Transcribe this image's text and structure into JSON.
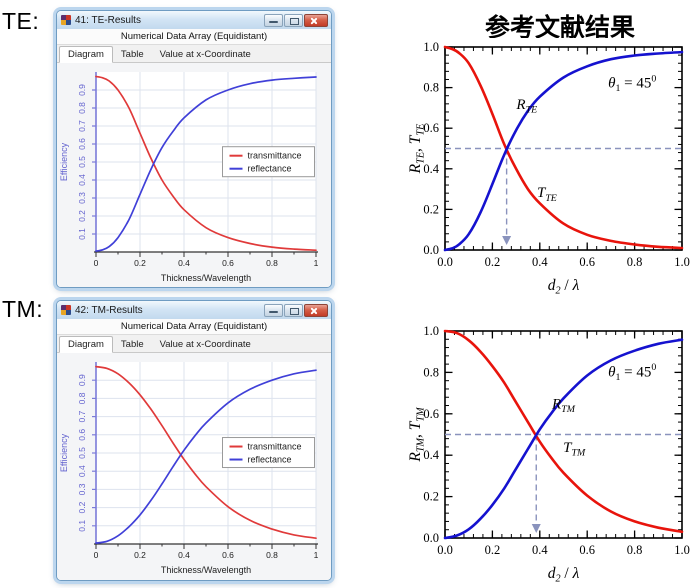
{
  "page": {
    "te_label": "TE:",
    "tm_label": "TM:",
    "reference_title": "参考文献结果"
  },
  "windows": [
    {
      "title": "41: TE-Results",
      "subtitle": "Numerical Data Array (Equidistant)",
      "tabs": [
        "Diagram",
        "Table",
        "Value at x-Coordinate"
      ]
    },
    {
      "title": "42: TM-Results",
      "subtitle": "Numerical Data Array (Equidistant)",
      "tabs": [
        "Diagram",
        "Table",
        "Value at x-Coordinate"
      ]
    }
  ],
  "chart_data": [
    {
      "id": "te-window",
      "type": "line",
      "style": "window",
      "title": "",
      "xlabel": "Thickness/Wavelength",
      "ylabel": "Efficiency",
      "xlim": [
        0,
        1
      ],
      "ylim": [
        0,
        1
      ],
      "grid": true,
      "xticks": [
        {
          "v": 0,
          "l": "0"
        },
        {
          "v": 0.2,
          "l": "0.2"
        },
        {
          "v": 0.4,
          "l": "0.4"
        },
        {
          "v": 0.6,
          "l": "0.6"
        },
        {
          "v": 0.8,
          "l": "0.8"
        },
        {
          "v": 1,
          "l": "1"
        }
      ],
      "yticks": [
        {
          "v": 0.1,
          "l": "0.1"
        },
        {
          "v": 0.2,
          "l": "0.2"
        },
        {
          "v": 0.3,
          "l": "0.3"
        },
        {
          "v": 0.4,
          "l": "0.4"
        },
        {
          "v": 0.5,
          "l": "0.5"
        },
        {
          "v": 0.6,
          "l": "0.6"
        },
        {
          "v": 0.7,
          "l": "0.7"
        },
        {
          "v": 0.8,
          "l": "0.8"
        },
        {
          "v": 0.9,
          "l": "0.9"
        }
      ],
      "legend": {
        "x": 0.575,
        "y": 0.585,
        "entries": [
          {
            "label": "transmittance",
            "color": "#e03a3a"
          },
          {
            "label": "reflectance",
            "color": "#4040d8"
          }
        ]
      },
      "series": [
        {
          "name": "transmittance",
          "color": "#e03a3a",
          "x": [
            0,
            0.03,
            0.06,
            0.1,
            0.15,
            0.2,
            0.25,
            0.3,
            0.35,
            0.4,
            0.5,
            0.6,
            0.7,
            0.8,
            0.9,
            1.0
          ],
          "y": [
            0.975,
            0.968,
            0.95,
            0.9,
            0.8,
            0.66,
            0.52,
            0.4,
            0.31,
            0.235,
            0.135,
            0.08,
            0.047,
            0.027,
            0.016,
            0.01
          ]
        },
        {
          "name": "reflectance",
          "color": "#4040d8",
          "x": [
            0,
            0.03,
            0.06,
            0.1,
            0.15,
            0.2,
            0.25,
            0.3,
            0.35,
            0.4,
            0.5,
            0.6,
            0.7,
            0.8,
            0.9,
            1.0
          ],
          "y": [
            0.005,
            0.012,
            0.03,
            0.08,
            0.18,
            0.32,
            0.46,
            0.58,
            0.67,
            0.745,
            0.845,
            0.9,
            0.935,
            0.955,
            0.965,
            0.972
          ]
        }
      ]
    },
    {
      "id": "tm-window",
      "type": "line",
      "style": "window",
      "title": "",
      "xlabel": "Thickness/Wavelength",
      "ylabel": "Efficiency",
      "xlim": [
        0,
        1
      ],
      "ylim": [
        0,
        1
      ],
      "grid": true,
      "xticks": [
        {
          "v": 0,
          "l": "0"
        },
        {
          "v": 0.2,
          "l": "0.2"
        },
        {
          "v": 0.4,
          "l": "0.4"
        },
        {
          "v": 0.6,
          "l": "0.6"
        },
        {
          "v": 0.8,
          "l": "0.8"
        },
        {
          "v": 1,
          "l": "1"
        }
      ],
      "yticks": [
        {
          "v": 0.1,
          "l": "0.1"
        },
        {
          "v": 0.2,
          "l": "0.2"
        },
        {
          "v": 0.3,
          "l": "0.3"
        },
        {
          "v": 0.4,
          "l": "0.4"
        },
        {
          "v": 0.5,
          "l": "0.5"
        },
        {
          "v": 0.6,
          "l": "0.6"
        },
        {
          "v": 0.7,
          "l": "0.7"
        },
        {
          "v": 0.8,
          "l": "0.8"
        },
        {
          "v": 0.9,
          "l": "0.9"
        }
      ],
      "legend": {
        "x": 0.575,
        "y": 0.585,
        "entries": [
          {
            "label": "transmittance",
            "color": "#e03a3a"
          },
          {
            "label": "reflectance",
            "color": "#4040d8"
          }
        ]
      },
      "series": [
        {
          "name": "transmittance",
          "color": "#e03a3a",
          "x": [
            0,
            0.05,
            0.1,
            0.15,
            0.2,
            0.25,
            0.3,
            0.35,
            0.4,
            0.45,
            0.5,
            0.6,
            0.7,
            0.8,
            0.9,
            1.0
          ],
          "y": [
            0.975,
            0.965,
            0.935,
            0.885,
            0.82,
            0.74,
            0.65,
            0.555,
            0.465,
            0.385,
            0.315,
            0.205,
            0.13,
            0.082,
            0.05,
            0.032
          ]
        },
        {
          "name": "reflectance",
          "color": "#4040d8",
          "x": [
            0,
            0.05,
            0.1,
            0.15,
            0.2,
            0.25,
            0.3,
            0.35,
            0.4,
            0.45,
            0.5,
            0.6,
            0.7,
            0.8,
            0.9,
            1.0
          ],
          "y": [
            0.005,
            0.015,
            0.045,
            0.095,
            0.16,
            0.24,
            0.33,
            0.425,
            0.515,
            0.595,
            0.665,
            0.775,
            0.85,
            0.9,
            0.935,
            0.955
          ]
        }
      ]
    },
    {
      "id": "te-ref",
      "type": "line",
      "style": "paper",
      "xlim": [
        0,
        1
      ],
      "ylim": [
        0,
        1
      ],
      "minor_step": 0.04,
      "xticks": [
        {
          "v": 0,
          "l": "0.0"
        },
        {
          "v": 0.2,
          "l": "0.2"
        },
        {
          "v": 0.4,
          "l": "0.4"
        },
        {
          "v": 0.6,
          "l": "0.6"
        },
        {
          "v": 0.8,
          "l": "0.8"
        },
        {
          "v": 1,
          "l": "1.0"
        }
      ],
      "yticks": [
        {
          "v": 0,
          "l": "0.0"
        },
        {
          "v": 0.2,
          "l": "0.2"
        },
        {
          "v": 0.4,
          "l": "0.4"
        },
        {
          "v": 0.6,
          "l": "0.6"
        },
        {
          "v": 0.8,
          "l": "0.8"
        },
        {
          "v": 1,
          "l": "1.0"
        }
      ],
      "xlabel_parts": [
        {
          "t": "d",
          "i": 1
        },
        {
          "t": "2",
          "sub": 1,
          "i": 1
        },
        {
          "t": " / "
        },
        {
          "t": "λ",
          "i": 1
        }
      ],
      "ylabel_parts": [
        {
          "t": "R",
          "i": 1
        },
        {
          "t": "TE",
          "sub": 1,
          "i": 1
        },
        {
          "t": ", "
        },
        {
          "t": "T",
          "i": 1
        },
        {
          "t": "TE",
          "sub": 1,
          "i": 1
        }
      ],
      "cross": {
        "x": 0.26,
        "y": 0.5
      },
      "dash_color": "#8a93bd",
      "annotations": [
        {
          "name": "theta-annotation",
          "x": 0.79,
          "y": 0.8,
          "size": 15,
          "parts": [
            {
              "t": "θ",
              "i": 1
            },
            {
              "t": "1",
              "sub": 1
            },
            {
              "t": " = 45"
            },
            {
              "t": "0",
              "sup": 1
            }
          ]
        },
        {
          "name": "r-curve-label",
          "x": 0.345,
          "y": 0.695,
          "size": 15,
          "parts": [
            {
              "t": "R",
              "i": 1
            },
            {
              "t": "TE",
              "sub": 1,
              "i": 1
            }
          ]
        },
        {
          "name": "t-curve-label",
          "x": 0.43,
          "y": 0.26,
          "size": 15,
          "parts": [
            {
              "t": "T",
              "i": 1
            },
            {
              "t": "TE",
              "sub": 1,
              "i": 1
            }
          ]
        }
      ],
      "series": [
        {
          "name": "T_TE",
          "color": "#e8140c",
          "x": [
            0,
            0.03,
            0.06,
            0.1,
            0.15,
            0.2,
            0.25,
            0.3,
            0.35,
            0.4,
            0.5,
            0.6,
            0.7,
            0.8,
            0.9,
            1.0
          ],
          "y": [
            1.0,
            0.99,
            0.97,
            0.92,
            0.81,
            0.67,
            0.52,
            0.4,
            0.3,
            0.23,
            0.13,
            0.075,
            0.045,
            0.027,
            0.016,
            0.01
          ]
        },
        {
          "name": "R_TE",
          "color": "#1512cf",
          "x": [
            0,
            0.03,
            0.06,
            0.1,
            0.15,
            0.2,
            0.25,
            0.3,
            0.35,
            0.4,
            0.5,
            0.6,
            0.7,
            0.8,
            0.9,
            1.0
          ],
          "y": [
            0.0,
            0.008,
            0.028,
            0.078,
            0.185,
            0.325,
            0.47,
            0.59,
            0.685,
            0.755,
            0.85,
            0.905,
            0.94,
            0.958,
            0.968,
            0.975
          ]
        }
      ]
    },
    {
      "id": "tm-ref",
      "type": "line",
      "style": "paper",
      "xlim": [
        0,
        1
      ],
      "ylim": [
        0,
        1
      ],
      "minor_step": 0.04,
      "xticks": [
        {
          "v": 0,
          "l": "0.0"
        },
        {
          "v": 0.2,
          "l": "0.2"
        },
        {
          "v": 0.4,
          "l": "0.4"
        },
        {
          "v": 0.6,
          "l": "0.6"
        },
        {
          "v": 0.8,
          "l": "0.8"
        },
        {
          "v": 1,
          "l": "1.0"
        }
      ],
      "yticks": [
        {
          "v": 0,
          "l": "0.0"
        },
        {
          "v": 0.2,
          "l": "0.2"
        },
        {
          "v": 0.4,
          "l": "0.4"
        },
        {
          "v": 0.6,
          "l": "0.6"
        },
        {
          "v": 0.8,
          "l": "0.8"
        },
        {
          "v": 1,
          "l": "1.0"
        }
      ],
      "xlabel_parts": [
        {
          "t": "d",
          "i": 1
        },
        {
          "t": "2",
          "sub": 1,
          "i": 1
        },
        {
          "t": " / "
        },
        {
          "t": "λ",
          "i": 1
        }
      ],
      "ylabel_parts": [
        {
          "t": "R",
          "i": 1
        },
        {
          "t": "TM",
          "sub": 1,
          "i": 1
        },
        {
          "t": ", "
        },
        {
          "t": "T",
          "i": 1
        },
        {
          "t": "TM",
          "sub": 1,
          "i": 1
        }
      ],
      "cross": {
        "x": 0.385,
        "y": 0.5
      },
      "dash_color": "#8a93bd",
      "annotations": [
        {
          "name": "theta-annotation",
          "x": 0.79,
          "y": 0.78,
          "size": 15,
          "parts": [
            {
              "t": "θ",
              "i": 1
            },
            {
              "t": "1",
              "sub": 1
            },
            {
              "t": " = 45"
            },
            {
              "t": "0",
              "sup": 1
            }
          ]
        },
        {
          "name": "r-curve-label",
          "x": 0.5,
          "y": 0.625,
          "size": 15,
          "parts": [
            {
              "t": "R",
              "i": 1
            },
            {
              "t": "TM",
              "sub": 1,
              "i": 1
            }
          ]
        },
        {
          "name": "t-curve-label",
          "x": 0.545,
          "y": 0.415,
          "size": 15,
          "parts": [
            {
              "t": "T",
              "i": 1
            },
            {
              "t": "TM",
              "sub": 1,
              "i": 1
            }
          ]
        }
      ],
      "series": [
        {
          "name": "T_TM",
          "color": "#e8140c",
          "x": [
            0,
            0.05,
            0.1,
            0.15,
            0.2,
            0.25,
            0.3,
            0.35,
            0.4,
            0.45,
            0.5,
            0.6,
            0.7,
            0.8,
            0.9,
            1.0
          ],
          "y": [
            1.0,
            0.99,
            0.955,
            0.9,
            0.83,
            0.75,
            0.655,
            0.56,
            0.465,
            0.385,
            0.315,
            0.205,
            0.128,
            0.08,
            0.05,
            0.03
          ]
        },
        {
          "name": "R_TM",
          "color": "#1512cf",
          "x": [
            0,
            0.05,
            0.1,
            0.15,
            0.2,
            0.25,
            0.3,
            0.35,
            0.4,
            0.45,
            0.5,
            0.6,
            0.7,
            0.8,
            0.9,
            1.0
          ],
          "y": [
            0.0,
            0.012,
            0.042,
            0.093,
            0.16,
            0.24,
            0.335,
            0.43,
            0.525,
            0.605,
            0.675,
            0.785,
            0.858,
            0.905,
            0.938,
            0.958
          ]
        }
      ]
    }
  ]
}
